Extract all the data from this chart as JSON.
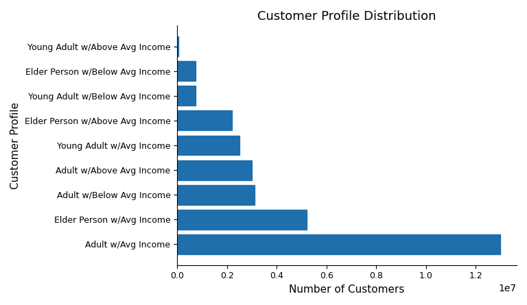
{
  "title": "Customer Profile Distribution",
  "xlabel": "Number of Customers",
  "ylabel": "Customer Profile",
  "bar_color": "#1f6fad",
  "categories_top_to_bottom": [
    "Young Adult w/Above Avg Income",
    "Elder Person w/Below Avg Income",
    "Young Adult w/Below Avg Income",
    "Elder Person w/Above Avg Income",
    "Young Adult w/Avg Income",
    "Adult w/Above Avg Income",
    "Adult w/Below Avg Income",
    "Elder Person w/Avg Income",
    "Adult w/Avg Income"
  ],
  "values_top_to_bottom": [
    50000,
    750000,
    750000,
    2200000,
    2500000,
    3000000,
    3100000,
    5200000,
    13000000
  ],
  "figsize": [
    7.68,
    4.45
  ],
  "dpi": 100
}
